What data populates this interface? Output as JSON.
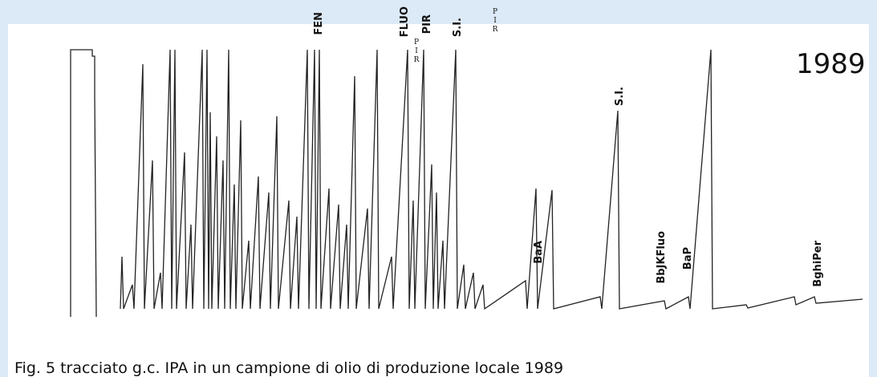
{
  "header": {
    "year": "1989"
  },
  "labels": [
    "FEN",
    "FLUO",
    "PIR",
    "PIR",
    "S.I.",
    "PIR",
    "S.I.",
    "BaA",
    "BbJKFluo",
    "BaP",
    "BghiPer"
  ],
  "caption": "Fig. 5 tracciato g.c. IPA in un campione di olio di produzione locale 1989"
}
